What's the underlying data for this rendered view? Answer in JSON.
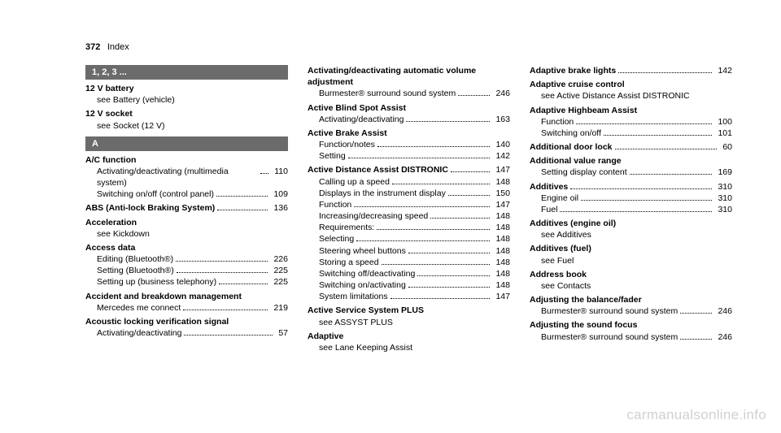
{
  "header": {
    "page_num": "372",
    "title": "Index"
  },
  "watermark": "carmanualsonline.info",
  "col1": {
    "sec1": {
      "heading": "1, 2, 3 ..."
    },
    "e1": {
      "title": "12 V battery",
      "see": "see Battery (vehicle)"
    },
    "e2": {
      "title": "12 V socket",
      "see": "see Socket (12 V)"
    },
    "sec2": {
      "heading": "A"
    },
    "e3": {
      "title": "A/C function",
      "l1": {
        "label": "Activating/deactivating (multimedia system)",
        "page": "110"
      },
      "l2": {
        "label": "Switching on/off (control panel)",
        "page": "109"
      }
    },
    "e4": {
      "title": "ABS (Anti-lock Braking System)",
      "page": "136"
    },
    "e5": {
      "title": "Acceleration",
      "see": "see Kickdown"
    },
    "e6": {
      "title": "Access data",
      "l1": {
        "label": "Editing (Bluetooth®)",
        "page": "226"
      },
      "l2": {
        "label": "Setting (Bluetooth®)",
        "page": "225"
      },
      "l3": {
        "label": "Setting up (business telephony)",
        "page": "225"
      }
    },
    "e7": {
      "title": "Accident and breakdown management",
      "l1": {
        "label": "Mercedes me connect",
        "page": "219"
      }
    },
    "e8": {
      "title": "Acoustic locking verification signal",
      "l1": {
        "label": "Activating/deactivating",
        "page": "57"
      }
    }
  },
  "col2": {
    "e1": {
      "title": "Activating/deactivating automatic volume adjustment",
      "l1": {
        "label": "Burmester® surround sound system",
        "page": "246"
      }
    },
    "e2": {
      "title": "Active Blind Spot Assist",
      "l1": {
        "label": "Activating/deactivating",
        "page": "163"
      }
    },
    "e3": {
      "title": "Active Brake Assist",
      "l1": {
        "label": "Function/notes",
        "page": "140"
      },
      "l2": {
        "label": "Setting",
        "page": "142"
      }
    },
    "e4": {
      "title": "Active Distance Assist DISTRONIC",
      "page": "147",
      "l1": {
        "label": "Calling up a speed",
        "page": "148"
      },
      "l2": {
        "label": "Displays in the instrument display",
        "page": "150"
      },
      "l3": {
        "label": "Function",
        "page": "147"
      },
      "l4": {
        "label": "Increasing/decreasing speed",
        "page": "148"
      },
      "l5": {
        "label": "Requirements:",
        "page": "148"
      },
      "l6": {
        "label": "Selecting",
        "page": "148"
      },
      "l7": {
        "label": "Steering wheel buttons",
        "page": "148"
      },
      "l8": {
        "label": "Storing a speed",
        "page": "148"
      },
      "l9": {
        "label": "Switching off/deactivating",
        "page": "148"
      },
      "l10": {
        "label": "Switching on/activating",
        "page": "148"
      },
      "l11": {
        "label": "System limitations",
        "page": "147"
      }
    },
    "e5": {
      "title": "Active Service System PLUS",
      "see": "see ASSYST PLUS"
    },
    "e6": {
      "title": "Adaptive",
      "see": "see Lane Keeping Assist"
    }
  },
  "col3": {
    "e1": {
      "title": "Adaptive brake lights",
      "page": "142"
    },
    "e2": {
      "title": "Adaptive cruise control",
      "see": "see Active Distance Assist DISTRONIC"
    },
    "e3": {
      "title": "Adaptive Highbeam Assist",
      "l1": {
        "label": "Function",
        "page": "100"
      },
      "l2": {
        "label": "Switching on/off",
        "page": "101"
      }
    },
    "e4": {
      "title": "Additional door lock",
      "page": "60"
    },
    "e5": {
      "title": "Additional value range",
      "l1": {
        "label": "Setting display content",
        "page": "169"
      }
    },
    "e6": {
      "title": "Additives",
      "page": "310",
      "l1": {
        "label": "Engine oil",
        "page": "310"
      },
      "l2": {
        "label": "Fuel",
        "page": "310"
      }
    },
    "e7": {
      "title": "Additives (engine oil)",
      "see": "see Additives"
    },
    "e8": {
      "title": "Additives (fuel)",
      "see": "see Fuel"
    },
    "e9": {
      "title": "Address book",
      "see": "see Contacts"
    },
    "e10": {
      "title": "Adjusting the balance/fader",
      "l1": {
        "label": "Burmester® surround sound system",
        "page": "246"
      }
    },
    "e11": {
      "title": "Adjusting the sound focus",
      "l1": {
        "label": "Burmester® surround sound system",
        "page": "246"
      }
    }
  }
}
